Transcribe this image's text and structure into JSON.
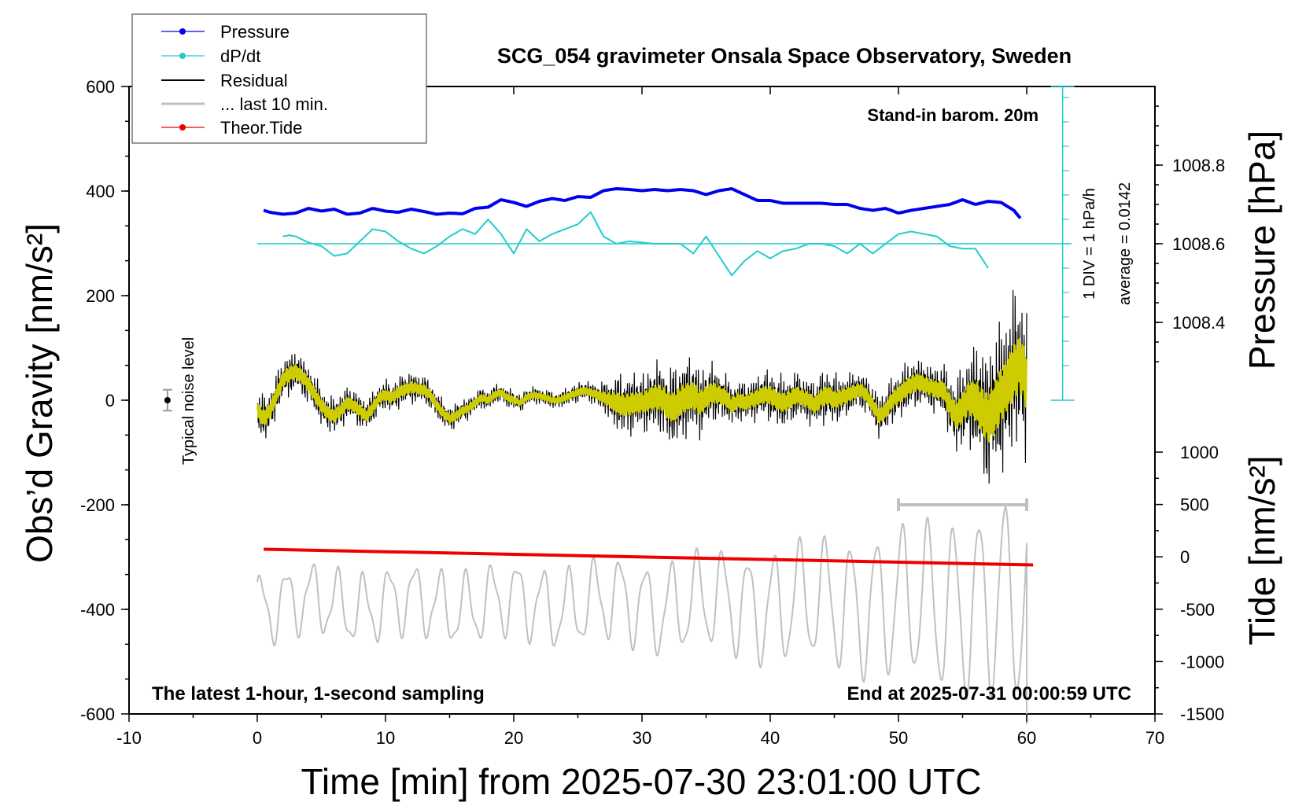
{
  "chart_data": {
    "type": "line",
    "title": "SCG_054 gravimeter Onsala Space Observatory, Sweden",
    "xlabel": "Time [min] from 2025-07-30 23:01:00 UTC",
    "ylabel_left": "Obs’d Gravity [nm/s²]",
    "ylabel_pressure": "Pressure [hPa]",
    "ylabel_tide": "Tide [nm/s²]",
    "xlim": [
      -10,
      70
    ],
    "ylim_left": [
      -600,
      600
    ],
    "x_ticks": [
      "-10",
      "0",
      "10",
      "20",
      "30",
      "40",
      "50",
      "60",
      "70"
    ],
    "y_ticks_left": [
      "600",
      "400",
      "200",
      "0",
      "-200",
      "-400",
      "-600"
    ],
    "y_ticks_pressure": [
      "1008.8",
      "1008.6",
      "1008.4"
    ],
    "pressure_ticks_values": [
      1008.8,
      1008.6,
      1008.4
    ],
    "y_ticks_tide": [
      "1000",
      "500",
      "0",
      "-500",
      "-1000",
      "-1500"
    ],
    "tide_ticks_values": [
      1000,
      500,
      0,
      -500,
      -1000,
      -1500
    ],
    "legend": [
      "Pressure",
      "dP/dt",
      "Residual",
      "... last 10 min.",
      "Theor.Tide"
    ],
    "annotations": {
      "stand_in": "Stand-in barom. 20m",
      "div": "1 DIV = 1 hPa/h",
      "average": "average = 0.0142",
      "noise": "Typical noise level",
      "latest": "The latest 1-hour, 1-second sampling",
      "end": "End at 2025-07-31 00:00:59 UTC"
    },
    "colors": {
      "pressure": "#0000ee",
      "dpdt": "#22cccc",
      "residual": "#000000",
      "last10": "#c0c0c0",
      "tide": "#ee0000",
      "smooth": "#cccc00"
    },
    "series": [
      {
        "name": "Pressure",
        "unit": "hPa",
        "x": [
          0.5,
          1,
          2,
          3,
          4,
          5,
          6,
          7,
          8,
          9,
          10,
          11,
          12,
          13,
          14,
          15,
          16,
          17,
          18,
          19,
          20,
          21,
          22,
          23,
          24,
          25,
          26,
          27,
          28,
          29,
          30,
          31,
          32,
          33,
          34,
          35,
          36,
          37,
          38,
          39,
          40,
          41,
          42,
          43,
          44,
          45,
          46,
          47,
          48,
          49,
          50,
          51,
          52,
          53,
          54,
          55,
          56,
          57,
          58,
          59,
          59.5
        ],
        "values": [
          1008.685,
          1008.68,
          1008.675,
          1008.678,
          1008.69,
          1008.683,
          1008.688,
          1008.675,
          1008.678,
          1008.69,
          1008.683,
          1008.68,
          1008.688,
          1008.682,
          1008.675,
          1008.678,
          1008.676,
          1008.69,
          1008.693,
          1008.712,
          1008.705,
          1008.695,
          1008.708,
          1008.715,
          1008.71,
          1008.72,
          1008.718,
          1008.735,
          1008.74,
          1008.738,
          1008.735,
          1008.738,
          1008.735,
          1008.738,
          1008.735,
          1008.725,
          1008.735,
          1008.74,
          1008.725,
          1008.71,
          1008.71,
          1008.703,
          1008.703,
          1008.703,
          1008.703,
          1008.7,
          1008.7,
          1008.69,
          1008.685,
          1008.69,
          1008.678,
          1008.685,
          1008.69,
          1008.695,
          1008.7,
          1008.712,
          1008.7,
          1008.708,
          1008.705,
          1008.685,
          1008.665
        ]
      },
      {
        "name": "dP/dt",
        "unit": "hPa/h",
        "x": [
          2,
          2.5,
          3,
          4,
          5,
          6,
          7,
          8,
          9,
          10,
          11,
          12,
          13,
          14,
          15,
          16,
          17,
          18,
          19,
          20,
          21,
          22,
          23,
          24,
          25,
          26,
          27,
          28,
          29,
          30,
          31,
          32,
          33,
          34,
          35,
          36,
          37,
          37.5,
          38,
          39,
          40,
          41,
          42,
          43,
          44,
          45,
          46,
          47,
          48,
          49,
          50,
          51,
          52,
          53,
          54,
          55,
          56,
          57
        ],
        "values": [
          0.3,
          0.35,
          0.3,
          0.05,
          -0.1,
          -0.5,
          -0.4,
          0.1,
          0.6,
          0.5,
          0.1,
          -0.2,
          -0.4,
          -0.1,
          0.3,
          0.6,
          0.4,
          1.0,
          0.4,
          -0.4,
          0.6,
          0.1,
          0.4,
          0.6,
          0.8,
          1.3,
          0.3,
          0.0,
          0.1,
          0.05,
          0.0,
          0.0,
          0.0,
          -0.4,
          0.3,
          -0.5,
          -1.3,
          -1.0,
          -0.7,
          -0.3,
          -0.6,
          -0.3,
          -0.2,
          0.0,
          0.0,
          -0.1,
          -0.4,
          0.0,
          -0.4,
          0.0,
          0.4,
          0.5,
          0.4,
          0.3,
          -0.1,
          -0.2,
          -0.2,
          -1.0
        ]
      },
      {
        "name": "Residual",
        "unit": "nm/s²",
        "x": [
          0,
          0.5,
          1,
          1.5,
          2,
          2.5,
          3,
          3.5,
          4,
          4.5,
          5,
          5.5,
          6,
          6.5,
          7,
          7.5,
          8,
          8.5,
          9,
          9.5,
          10,
          10.5,
          11,
          11.5,
          12,
          12.5,
          13,
          13.5,
          14,
          14.5,
          15,
          15.5,
          16,
          16.5,
          17,
          17.5,
          18,
          18.5,
          19,
          19.5,
          20,
          20.5,
          21,
          21.5,
          22,
          22.5,
          23,
          23.5,
          24,
          24.5,
          25,
          25.5,
          26,
          26.5,
          27,
          27.5,
          28,
          28.5,
          29,
          29.5,
          30,
          30.5,
          31,
          31.5,
          32,
          32.5,
          33,
          33.5,
          34,
          34.5,
          35,
          35.5,
          36,
          36.5,
          37,
          37.5,
          38,
          38.5,
          39,
          39.5,
          40,
          40.5,
          41,
          41.5,
          42,
          42.5,
          43,
          43.5,
          44,
          44.5,
          45,
          45.5,
          46,
          46.5,
          47,
          47.5,
          48,
          48.5,
          49,
          49.5,
          50,
          50.5,
          51,
          51.5,
          52,
          52.5,
          53,
          53.5,
          54,
          54.5,
          55,
          55.5,
          56,
          56.5,
          57,
          57.5,
          58,
          58.5,
          59,
          59.5,
          60
        ],
        "values": [
          -20,
          -35,
          -20,
          10,
          40,
          50,
          55,
          45,
          30,
          10,
          -10,
          -25,
          -30,
          -20,
          -5,
          -10,
          -20,
          -30,
          -15,
          5,
          10,
          5,
          15,
          20,
          25,
          22,
          20,
          10,
          -10,
          -25,
          -35,
          -30,
          -20,
          -15,
          -5,
          5,
          0,
          10,
          15,
          5,
          0,
          -5,
          5,
          10,
          8,
          5,
          0,
          0,
          5,
          10,
          15,
          18,
          15,
          10,
          5,
          0,
          -5,
          -10,
          -8,
          -5,
          -5,
          0,
          5,
          5,
          -10,
          -15,
          0,
          5,
          10,
          -5,
          5,
          15,
          10,
          5,
          -10,
          0,
          -5,
          0,
          5,
          10,
          10,
          0,
          -5,
          0,
          10,
          5,
          0,
          -10,
          5,
          10,
          0,
          5,
          10,
          15,
          20,
          10,
          -10,
          -30,
          -20,
          0,
          10,
          20,
          30,
          35,
          30,
          25,
          20,
          20,
          -10,
          -30,
          -15,
          5,
          0,
          -20,
          -35,
          -15,
          10,
          30,
          55,
          70,
          35
        ],
        "amplitude": [
          40,
          42,
          42,
          40,
          40,
          40,
          40,
          38,
          38,
          36,
          36,
          34,
          34,
          34,
          32,
          32,
          32,
          30,
          30,
          28,
          28,
          28,
          30,
          30,
          30,
          28,
          28,
          26,
          26,
          24,
          24,
          22,
          22,
          20,
          20,
          20,
          20,
          18,
          18,
          18,
          18,
          16,
          16,
          16,
          16,
          16,
          16,
          16,
          16,
          18,
          18,
          18,
          20,
          22,
          30,
          40,
          55,
          60,
          60,
          55,
          55,
          60,
          65,
          70,
          75,
          80,
          80,
          75,
          75,
          65,
          60,
          55,
          50,
          45,
          42,
          40,
          40,
          40,
          42,
          45,
          48,
          50,
          50,
          48,
          46,
          44,
          44,
          46,
          50,
          50,
          48,
          44,
          40,
          38,
          36,
          36,
          38,
          40,
          42,
          44,
          46,
          48,
          48,
          46,
          44,
          44,
          46,
          50,
          60,
          70,
          80,
          90,
          110,
          125,
          135,
          140,
          145,
          150,
          150,
          150,
          150
        ]
      },
      {
        "name": "... last 10 min.",
        "unit": "min",
        "x": [
          50,
          60
        ]
      },
      {
        "name": "Theor.Tide",
        "unit": "nm/s²",
        "x": [
          0.5,
          60.5
        ],
        "values": [
          -285,
          -315
        ]
      }
    ],
    "noise_level": {
      "x": -7,
      "value": 0,
      "error": 20
    },
    "tide_scale_note": "Gray wavy trace plotted on the Tide axis"
  }
}
